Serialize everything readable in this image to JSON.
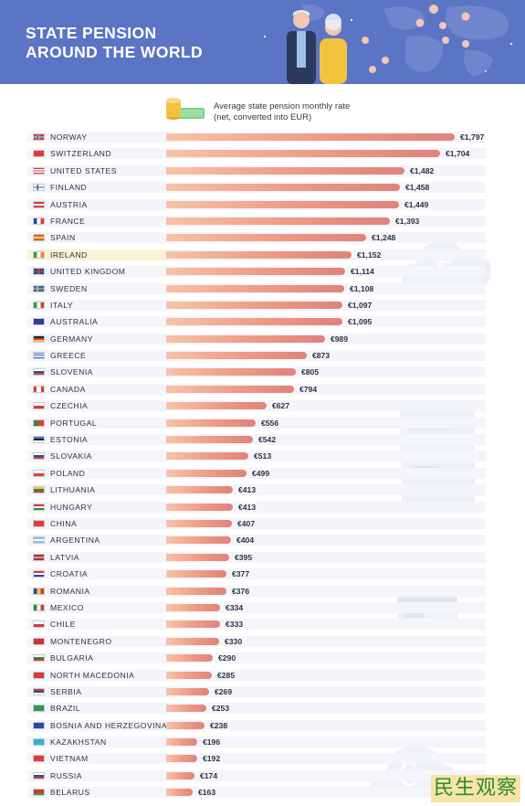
{
  "header": {
    "title_line1": "STATE PENSION",
    "title_line2": "AROUND THE WORLD"
  },
  "legend": {
    "line1": "Average state pension monthly rate",
    "line2": "(net, converted into EUR)",
    "icon": "coins-and-banknotes-icon"
  },
  "colors": {
    "header_bg": "#5b74c4",
    "bar_start": "#f7c3a7",
    "bar_end": "#e0827c",
    "highlight_row": "#fdf1d6",
    "row_bg": "#f4f5f9"
  },
  "highlight_country": "IRELAND",
  "watermark": "民生观察",
  "chart_data": {
    "type": "bar",
    "orientation": "horizontal",
    "currency": "€",
    "categories": [
      "NORWAY",
      "SWITZERLAND",
      "UNITED STATES",
      "FINLAND",
      "AUSTRIA",
      "FRANCE",
      "SPAIN",
      "IRELAND",
      "UNITED KINGDOM",
      "SWEDEN",
      "ITALY",
      "AUSTRALIA",
      "GERMANY",
      "GREECE",
      "SLOVENIA",
      "CANADA",
      "CZECHIA",
      "PORTUGAL",
      "ESTONIA",
      "SLOVAKIA",
      "POLAND",
      "LITHUANIA",
      "HUNGARY",
      "CHINA",
      "ARGENTINA",
      "LATVIA",
      "CROATIA",
      "ROMANIA",
      "MEXICO",
      "CHILE",
      "MONTENEGRO",
      "BULGARIA",
      "NORTH MACEDONIA",
      "SERBIA",
      "BRAZIL",
      "BOSNIA AND HERZEGOVINA",
      "KAZAKHSTAN",
      "VIETNAM",
      "RUSSIA",
      "BELARUS"
    ],
    "values": [
      1797,
      1704,
      1482,
      1458,
      1449,
      1393,
      1248,
      1152,
      1114,
      1108,
      1097,
      1095,
      989,
      873,
      805,
      794,
      627,
      556,
      542,
      513,
      499,
      413,
      413,
      407,
      404,
      395,
      377,
      376,
      334,
      333,
      330,
      290,
      285,
      269,
      253,
      238,
      196,
      192,
      174,
      163
    ],
    "labels": [
      "€1,797",
      "€1,704",
      "€1,482",
      "€1,458",
      "€1,449",
      "€1,393",
      "€1,248",
      "€1,152",
      "€1,114",
      "€1,108",
      "€1,097",
      "€1,095",
      "€989",
      "€873",
      "€805",
      "€794",
      "€627",
      "€556",
      "€542",
      "€513",
      "€499",
      "€413",
      "€413",
      "€407",
      "€404",
      "€395",
      "€377",
      "€376",
      "€334",
      "€333",
      "€330",
      "€290",
      "€285",
      "€269",
      "€253",
      "€238",
      "€196",
      "€192",
      "€174",
      "€163"
    ],
    "flags": [
      "norway-flag-icon",
      "switzerland-flag-icon",
      "usa-flag-icon",
      "finland-flag-icon",
      "austria-flag-icon",
      "france-flag-icon",
      "spain-flag-icon",
      "ireland-flag-icon",
      "uk-flag-icon",
      "sweden-flag-icon",
      "italy-flag-icon",
      "australia-flag-icon",
      "germany-flag-icon",
      "greece-flag-icon",
      "slovenia-flag-icon",
      "canada-flag-icon",
      "czechia-flag-icon",
      "portugal-flag-icon",
      "estonia-flag-icon",
      "slovakia-flag-icon",
      "poland-flag-icon",
      "lithuania-flag-icon",
      "hungary-flag-icon",
      "china-flag-icon",
      "argentina-flag-icon",
      "latvia-flag-icon",
      "croatia-flag-icon",
      "romania-flag-icon",
      "mexico-flag-icon",
      "chile-flag-icon",
      "montenegro-flag-icon",
      "bulgaria-flag-icon",
      "north-macedonia-flag-icon",
      "serbia-flag-icon",
      "brazil-flag-icon",
      "bosnia-flag-icon",
      "kazakhstan-flag-icon",
      "vietnam-flag-icon",
      "russia-flag-icon",
      "belarus-flag-icon"
    ],
    "xlim": [
      0,
      1797
    ],
    "title": "",
    "xlabel": "",
    "ylabel": "",
    "grid": false
  }
}
